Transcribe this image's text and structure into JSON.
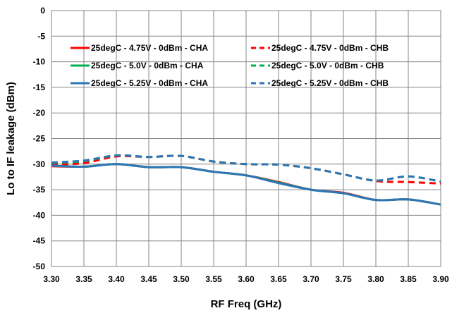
{
  "chart_data": {
    "type": "line",
    "title": "",
    "xlabel": "RF Freq (GHz)",
    "ylabel": "Lo to IF leakage (dBm)",
    "xlim": [
      3.3,
      3.9
    ],
    "ylim": [
      -50,
      0
    ],
    "xticks": [
      "3.30",
      "3.35",
      "3.40",
      "3.45",
      "3.50",
      "3.55",
      "3.60",
      "3.65",
      "3.70",
      "3.75",
      "3.80",
      "3.85",
      "3.90"
    ],
    "yticks": [
      "0",
      "-5",
      "-10",
      "-15",
      "-20",
      "-25",
      "-30",
      "-35",
      "-40",
      "-45",
      "-50"
    ],
    "grid": true,
    "legend_position": "top",
    "x": [
      3.3,
      3.35,
      3.4,
      3.45,
      3.5,
      3.55,
      3.6,
      3.65,
      3.7,
      3.75,
      3.8,
      3.85,
      3.9
    ],
    "series": [
      {
        "name": "25degC - 4.75V - 0dBm - CHA",
        "color": "#ff0000",
        "dash": "solid",
        "values": [
          -30.4,
          -30.5,
          -30.0,
          -30.6,
          -30.6,
          -31.5,
          -32.2,
          -33.5,
          -35.0,
          -35.6,
          -37.0,
          -36.9,
          -37.9
        ]
      },
      {
        "name": "25degC - 4.75V - 0dBm - CHB",
        "color": "#ff0000",
        "dash": "dashed",
        "values": [
          -30.1,
          -29.8,
          -28.5,
          -28.6,
          -28.4,
          -29.5,
          -30.0,
          -30.1,
          -30.8,
          -32.0,
          -33.3,
          -33.5,
          -33.8
        ]
      },
      {
        "name": "25degC - 5.0V - 0dBm - CHA",
        "color": "#00b050",
        "dash": "solid",
        "values": [
          -30.3,
          -30.5,
          -30.0,
          -30.6,
          -30.6,
          -31.5,
          -32.2,
          -33.6,
          -35.0,
          -35.7,
          -37.0,
          -36.9,
          -37.9
        ]
      },
      {
        "name": "25degC - 5.0V - 0dBm - CHB",
        "color": "#00b050",
        "dash": "dashed",
        "values": [
          -29.8,
          -29.4,
          -28.3,
          -28.6,
          -28.4,
          -29.5,
          -30.0,
          -30.1,
          -30.8,
          -32.0,
          -33.2,
          -32.4,
          -33.4
        ]
      },
      {
        "name": "25degC - 5.25V - 0dBm - CHA",
        "color": "#2e75b6",
        "dash": "solid",
        "values": [
          -30.3,
          -30.5,
          -30.0,
          -30.6,
          -30.6,
          -31.5,
          -32.2,
          -33.7,
          -35.0,
          -35.7,
          -37.0,
          -36.9,
          -37.9
        ]
      },
      {
        "name": "25degC - 5.25V - 0dBm - CHB",
        "color": "#2e75b6",
        "dash": "dashed",
        "values": [
          -29.7,
          -29.3,
          -28.3,
          -28.6,
          -28.4,
          -29.5,
          -30.0,
          -30.1,
          -30.8,
          -32.0,
          -33.2,
          -32.4,
          -33.4
        ]
      }
    ]
  }
}
